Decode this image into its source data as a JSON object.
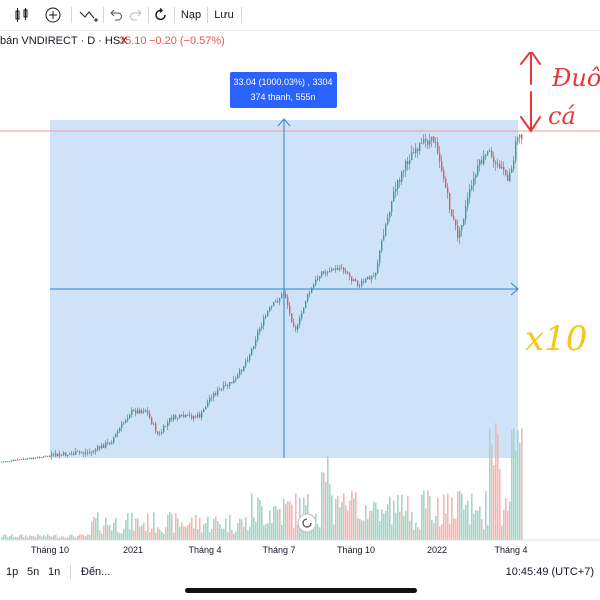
{
  "toolbar": {
    "items": [
      {
        "name": "chart-type-icon",
        "glyph": "Ⅲ"
      },
      {
        "name": "add-indicator-icon",
        "glyph": "⊕"
      },
      {
        "name": "drawing-tools-icon",
        "glyph": "∿"
      },
      {
        "name": "undo-icon",
        "glyph": "↶"
      },
      {
        "name": "redo-icon",
        "glyph": "↷"
      },
      {
        "name": "reload-icon",
        "glyph": "↺"
      }
    ],
    "load_label": "Nạp",
    "save_label": "Lưu"
  },
  "symbol": {
    "name": "bán VNDIRECT · D · HSX",
    "price": "35.10",
    "change": "−0.20 (−0.57%)",
    "change_color": "#ef5350"
  },
  "measure": {
    "line1": "33.04 (1000.03%) , 3304",
    "line2": "374 thanh, 555n",
    "color": "#2962ff"
  },
  "annotations": {
    "handwriting_1": "Đuôi",
    "handwriting_2": "cá",
    "handwriting_3": "x10",
    "red": "#e53935",
    "yellow": "#f5c518"
  },
  "time_axis": [
    "Tháng 10",
    "2021",
    "Tháng 4",
    "Tháng 7",
    "Tháng 10",
    "2022",
    "Tháng 4"
  ],
  "bottom": {
    "intervals": [
      "1p",
      "5n",
      "1n"
    ],
    "goto": "Đến...",
    "clock": "10:45:49 (UTC+7)"
  },
  "colors": {
    "up": "#26a69a",
    "down": "#ef5350",
    "measure_fill": "#cfe3f8",
    "measure_line": "#2f80d1"
  }
}
